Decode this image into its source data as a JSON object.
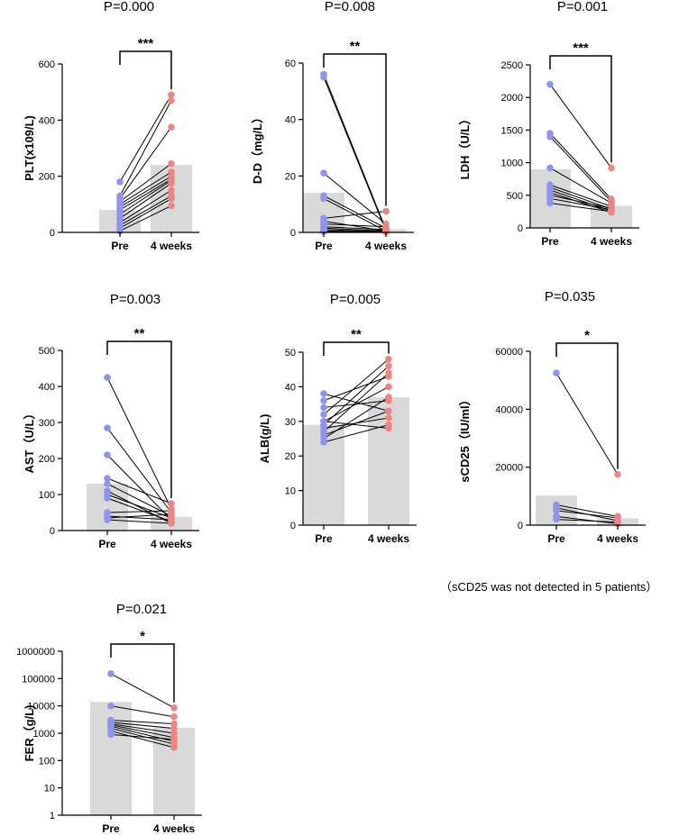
{
  "colors": {
    "pre": "#8f93ec",
    "post": "#ee8585",
    "bar": "#d9d9d9",
    "axis": "#000000",
    "line": "#000000"
  },
  "categories": [
    "Pre",
    "4 weeks"
  ],
  "note": "（sCD25 was not detected in 5 patients）",
  "chart_data": [
    {
      "type": "bar",
      "id": "plt",
      "title": "P=0.000",
      "ylabel": "PLT(x109/L)",
      "scale": "linear",
      "ylim": [
        0,
        600
      ],
      "yticks": [
        0,
        200,
        400,
        600
      ],
      "ytick_labels": [
        "0",
        "200",
        "400",
        "600"
      ],
      "means": [
        80,
        240
      ],
      "significance": "***",
      "pairs": [
        [
          180,
          490
        ],
        [
          130,
          470
        ],
        [
          120,
          375
        ],
        [
          110,
          245
        ],
        [
          100,
          215
        ],
        [
          90,
          200
        ],
        [
          80,
          190
        ],
        [
          65,
          185
        ],
        [
          50,
          175
        ],
        [
          35,
          150
        ],
        [
          25,
          130
        ],
        [
          15,
          120
        ],
        [
          5,
          95
        ]
      ]
    },
    {
      "type": "bar",
      "id": "dd",
      "title": "P=0.008",
      "ylabel": "D-D（mg/L）",
      "scale": "linear",
      "ylim": [
        0,
        60
      ],
      "yticks": [
        0,
        20,
        40,
        60
      ],
      "ytick_labels": [
        "0",
        "20",
        "40",
        "60"
      ],
      "means": [
        14,
        1.2
      ],
      "significance": "**",
      "pairs": [
        [
          56,
          1.0
        ],
        [
          55,
          0.5
        ],
        [
          21,
          3.0
        ],
        [
          13,
          1.5
        ],
        [
          12,
          0.5
        ],
        [
          5,
          7.5
        ],
        [
          4,
          0.5
        ],
        [
          3,
          2.0
        ],
        [
          2,
          1.0
        ],
        [
          1.5,
          0.5
        ],
        [
          1,
          0.3
        ],
        [
          0.5,
          0.2
        ],
        [
          0.3,
          0.1
        ]
      ]
    },
    {
      "type": "bar",
      "id": "ldh",
      "title": "P=0.001",
      "ylabel": "LDH（U/L）",
      "scale": "linear",
      "ylim": [
        0,
        2500
      ],
      "yticks": [
        0,
        500,
        1000,
        1500,
        2000,
        2500
      ],
      "ytick_labels": [
        "0",
        "500",
        "1000",
        "1500",
        "2000",
        "2500"
      ],
      "means": [
        900,
        340
      ],
      "significance": "***",
      "pairs": [
        [
          2200,
          920
        ],
        [
          1450,
          440
        ],
        [
          1400,
          400
        ],
        [
          920,
          380
        ],
        [
          660,
          330
        ],
        [
          620,
          290
        ],
        [
          580,
          260
        ],
        [
          540,
          240
        ],
        [
          500,
          300
        ],
        [
          450,
          280
        ],
        [
          380,
          250
        ]
      ]
    },
    {
      "type": "bar",
      "id": "ast",
      "title": "P=0.003",
      "ylabel": "AST（U/L）",
      "scale": "linear",
      "ylim": [
        0,
        500
      ],
      "yticks": [
        0,
        100,
        200,
        300,
        400,
        500
      ],
      "ytick_labels": [
        "0",
        "100",
        "200",
        "300",
        "400",
        "500"
      ],
      "means": [
        130,
        38
      ],
      "significance": "**",
      "pairs": [
        [
          425,
          60
        ],
        [
          285,
          50
        ],
        [
          210,
          30
        ],
        [
          145,
          75
        ],
        [
          130,
          40
        ],
        [
          110,
          20
        ],
        [
          100,
          35
        ],
        [
          90,
          25
        ],
        [
          50,
          55
        ],
        [
          40,
          30
        ],
        [
          35,
          45
        ],
        [
          30,
          20
        ]
      ]
    },
    {
      "type": "bar",
      "id": "alb",
      "title": "P=0.005",
      "ylabel": "ALB(g/L)",
      "scale": "linear",
      "ylim": [
        0,
        50
      ],
      "yticks": [
        0,
        10,
        20,
        30,
        40,
        50
      ],
      "ytick_labels": [
        "0",
        "10",
        "20",
        "30",
        "40",
        "50"
      ],
      "means": [
        29,
        37
      ],
      "significance": "**",
      "pairs": [
        [
          38,
          33
        ],
        [
          36,
          43
        ],
        [
          34,
          36
        ],
        [
          32,
          48
        ],
        [
          30,
          40
        ],
        [
          29,
          46
        ],
        [
          28,
          31
        ],
        [
          27,
          44
        ],
        [
          26,
          33
        ],
        [
          25,
          37
        ],
        [
          24,
          29
        ],
        [
          30,
          28
        ]
      ]
    },
    {
      "type": "bar",
      "id": "scd25",
      "title": "P=0.035",
      "ylabel": "sCD25（IU/ml）",
      "scale": "linear",
      "ylim": [
        0,
        60000
      ],
      "yticks": [
        0,
        20000,
        40000,
        60000
      ],
      "ytick_labels": [
        "0",
        "20000",
        "40000",
        "60000"
      ],
      "means": [
        10200,
        2400
      ],
      "significance": "*",
      "pairs": [
        [
          52500,
          17500
        ],
        [
          7000,
          3000
        ],
        [
          6000,
          1500
        ],
        [
          5000,
          2500
        ],
        [
          3000,
          500
        ],
        [
          2000,
          1000
        ]
      ]
    },
    {
      "type": "bar",
      "id": "fer",
      "title": "P=0.021",
      "ylabel": "FER（g/L)",
      "scale": "log",
      "ylim": [
        1,
        1000000
      ],
      "yticks": [
        1,
        10,
        100,
        1000,
        10000,
        100000,
        1000000
      ],
      "ytick_labels": [
        "1",
        "10",
        "100",
        "1000",
        "10000",
        "100000",
        "1000000"
      ],
      "means": [
        14000,
        1600
      ],
      "significance": "*",
      "pairs": [
        [
          150000,
          8500
        ],
        [
          10000,
          4000
        ],
        [
          3000,
          2200
        ],
        [
          2500,
          1500
        ],
        [
          2200,
          1000
        ],
        [
          2000,
          700
        ],
        [
          1800,
          500
        ],
        [
          1500,
          400
        ],
        [
          1200,
          300
        ],
        [
          900,
          600
        ]
      ]
    }
  ]
}
